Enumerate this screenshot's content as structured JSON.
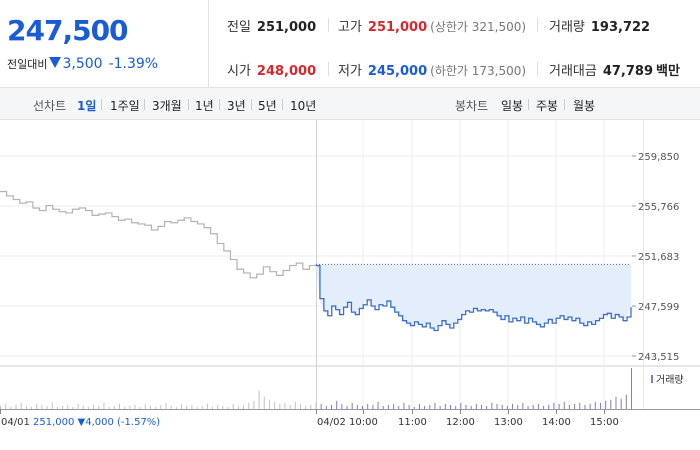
{
  "quote": {
    "price": "247,500",
    "change_label": "전일대비",
    "change": "3,500",
    "change_pct": "-1.39%",
    "prev_close_label": "전일",
    "prev_close": "251,000",
    "high_label": "고가",
    "high": "251,000",
    "upper_limit": "(상한가 321,500)",
    "volume_label": "거래량",
    "volume": "193,722",
    "open_label": "시가",
    "open": "248,000",
    "low_label": "저가",
    "low": "245,000",
    "lower_limit": "(하한가 173,500)",
    "trade_value_label": "거래대금",
    "trade_value": "47,789",
    "trade_value_unit": "백만"
  },
  "period_bar": {
    "line_label": "선차트",
    "line_periods": [
      "1일",
      "1주일",
      "3개월",
      "1년",
      "3년",
      "5년",
      "10년"
    ],
    "active_line_period": "1일",
    "candle_label": "봉차트",
    "candle_periods": [
      "일봉",
      "주봉",
      "월봉"
    ]
  },
  "colors": {
    "blue": "#1a5bd6",
    "red": "#d8262a",
    "prev_day_line": "#b3b3b3",
    "today_line": "#3a6fcf",
    "fill": "#e4edfb"
  },
  "chart_data": {
    "type": "line",
    "y_ticks": [
      "259,850",
      "255,766",
      "251,683",
      "247,599",
      "243,515"
    ],
    "ylim": [
      243515,
      259850
    ],
    "x_ticks": [
      "04/01",
      "04/02",
      "10:00",
      "11:00",
      "12:00",
      "13:00",
      "14:00",
      "15:00"
    ],
    "prev_day_summary": "251,000 ▼4,000 (-1.57%)",
    "reference_price": 251000,
    "volume_label": "거래량",
    "series": [
      {
        "values": [
          256950,
          256600,
          256300,
          256000,
          256100,
          255600,
          255400,
          255800,
          255500,
          255300,
          255200,
          255500,
          255600,
          255400,
          255000,
          255100,
          255200,
          254900,
          254600,
          254700,
          254400,
          254300,
          254200,
          253800,
          254100,
          254500,
          254400,
          254600,
          254800,
          254500,
          254300,
          254000,
          253500,
          252700,
          252100,
          251400,
          250600,
          250300,
          249900,
          250200,
          250800,
          250400,
          250100,
          250500,
          250900,
          251100,
          250600,
          250900,
          251000
        ]
      },
      {
        "values": [
          250900,
          248200,
          247200,
          246800,
          247600,
          247300,
          246900,
          247500,
          247900,
          247100,
          246900,
          247400,
          247700,
          248100,
          247600,
          247300,
          247700,
          247600,
          248000,
          247500,
          247100,
          246800,
          246400,
          246200,
          246000,
          246300,
          246100,
          245900,
          246200,
          245800,
          245600,
          246000,
          246400,
          246100,
          245800,
          246200,
          246500,
          246900,
          247200,
          247100,
          247400,
          247200,
          247300,
          247200,
          247300,
          247100,
          246800,
          246500,
          246800,
          246300,
          246600,
          246400,
          246700,
          246200,
          246600,
          246300,
          246100,
          245900,
          246200,
          246500,
          246200,
          246600,
          246800,
          246500,
          246700,
          246400,
          246600,
          246200,
          246000,
          246300,
          246100,
          246400,
          246600,
          246900,
          247000,
          246600,
          246900,
          246700,
          246400,
          246700,
          247500
        ]
      }
    ],
    "volume": [
      3,
      5,
      2,
      4,
      6,
      3,
      2,
      5,
      4,
      3,
      7,
      2,
      3,
      4,
      2,
      5,
      3,
      2,
      4,
      3,
      6,
      2,
      3,
      5,
      2,
      3,
      4,
      2,
      5,
      3,
      2,
      4,
      6,
      3,
      2,
      5,
      3,
      4,
      2,
      3,
      5,
      2,
      4,
      3,
      2,
      5,
      3,
      4,
      6,
      8,
      18,
      12,
      9,
      7,
      5,
      6,
      4,
      7,
      5,
      3,
      4,
      6,
      5,
      3,
      4,
      8,
      5,
      3,
      6,
      4,
      3,
      5,
      4,
      7,
      3,
      4,
      5,
      3,
      6,
      4,
      2,
      5,
      3,
      4,
      6,
      3,
      5,
      4,
      3,
      6,
      4,
      3,
      5,
      4,
      3,
      6,
      5,
      4,
      3,
      5,
      4,
      6,
      3,
      4,
      5,
      3,
      4,
      6,
      5,
      7,
      4,
      5,
      6,
      4,
      5,
      7,
      6,
      8,
      9,
      12,
      10,
      14,
      40
    ]
  }
}
